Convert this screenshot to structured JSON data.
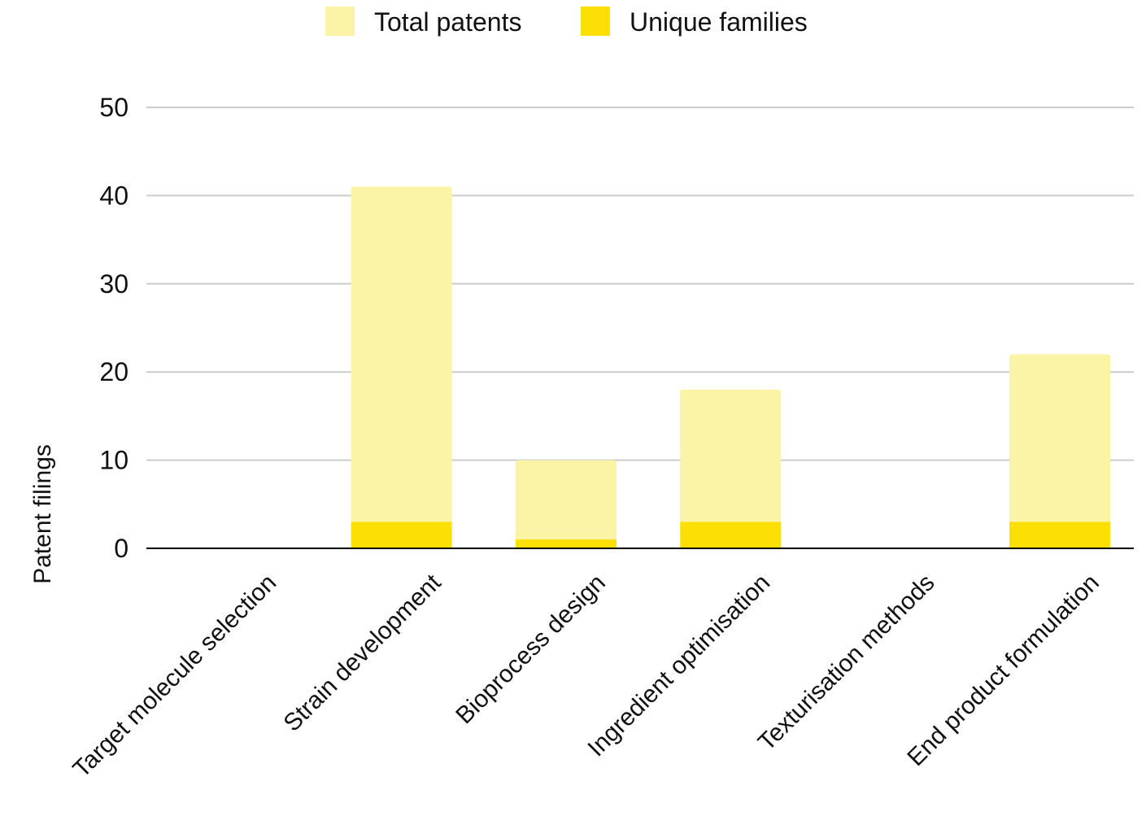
{
  "chart_data": {
    "type": "bar",
    "stacked": false,
    "overlapping": true,
    "categories": [
      "Target molecule selection",
      "Strain development",
      "Bioprocess design",
      "Ingredient optimisation",
      "Texturisation methods",
      "End product formulation"
    ],
    "series": [
      {
        "name": "Total patents",
        "values": [
          0,
          41,
          10,
          18,
          0,
          22
        ],
        "color": "#fbf3a5"
      },
      {
        "name": "Unique families",
        "values": [
          0,
          3,
          1,
          3,
          0,
          3
        ],
        "color": "#fbdf05"
      }
    ],
    "title": "",
    "xlabel": "",
    "ylabel": "Patent filings",
    "ylim": [
      0,
      50
    ],
    "yticks": [
      0,
      10,
      20,
      30,
      40,
      50
    ],
    "grid": true,
    "legend": "top-center"
  }
}
